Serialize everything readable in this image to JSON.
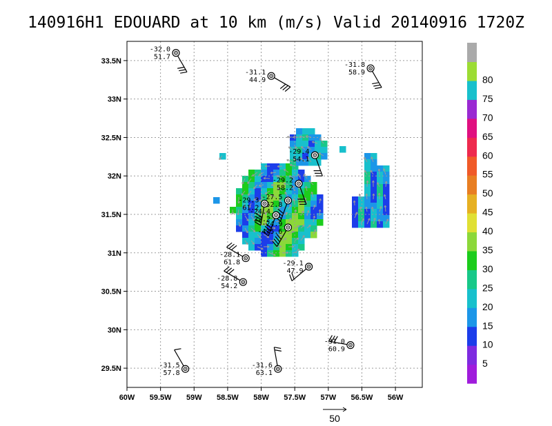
{
  "chart_data": {
    "type": "scatter",
    "title": "140916H1 EDOUARD at 10 km (m/s) Valid 20140916 1720Z",
    "xlim": [
      -60.0,
      -55.6
    ],
    "ylim": [
      29.25,
      33.75
    ],
    "x_ticks": [
      {
        "value": -60.0,
        "label": "60W"
      },
      {
        "value": -59.5,
        "label": "59.5W"
      },
      {
        "value": -59.0,
        "label": "59W"
      },
      {
        "value": -58.5,
        "label": "58.5W"
      },
      {
        "value": -58.0,
        "label": "58W"
      },
      {
        "value": -57.5,
        "label": "57.5W"
      },
      {
        "value": -57.0,
        "label": "57W"
      },
      {
        "value": -56.5,
        "label": "56.5W"
      },
      {
        "value": -56.0,
        "label": "56W"
      }
    ],
    "y_ticks": [
      {
        "value": 29.5,
        "label": "29.5N"
      },
      {
        "value": 30.0,
        "label": "30N"
      },
      {
        "value": 30.5,
        "label": "30.5N"
      },
      {
        "value": 31.0,
        "label": "31N"
      },
      {
        "value": 31.5,
        "label": "31.5N"
      },
      {
        "value": 32.0,
        "label": "32N"
      },
      {
        "value": 32.5,
        "label": "32.5N"
      },
      {
        "value": 33.0,
        "label": "33N"
      },
      {
        "value": 33.5,
        "label": "33.5N"
      }
    ],
    "grid": true,
    "dropsondes": [
      {
        "lon": -59.27,
        "lat": 33.6,
        "top": "-32.0",
        "bottom": "51.7"
      },
      {
        "lon": -57.85,
        "lat": 33.3,
        "top": "-31.1",
        "bottom": "44.9"
      },
      {
        "lon": -56.37,
        "lat": 33.4,
        "top": "-31.8",
        "bottom": "58.9"
      },
      {
        "lon": -57.2,
        "lat": 32.27,
        "top": "-29.4",
        "bottom": "54.1"
      },
      {
        "lon": -57.44,
        "lat": 31.9,
        "top": "-29.2",
        "bottom": "58.2"
      },
      {
        "lon": -57.6,
        "lat": 31.68,
        "top": "-27.5",
        "bottom": "52.8"
      },
      {
        "lon": -57.95,
        "lat": 31.64,
        "top": "-29.3",
        "bottom": "61.2"
      },
      {
        "lon": -57.78,
        "lat": 31.49,
        "top": "-24.4",
        "bottom": "22.2"
      },
      {
        "lon": -57.6,
        "lat": 31.33,
        "top": "-24.9",
        "bottom": "-475.6"
      },
      {
        "lon": -58.23,
        "lat": 30.93,
        "top": "-28.1",
        "bottom": "61.8"
      },
      {
        "lon": -57.29,
        "lat": 30.82,
        "top": "-29.1",
        "bottom": "47.9"
      },
      {
        "lon": -58.27,
        "lat": 30.62,
        "top": "-28.8",
        "bottom": "54.2"
      },
      {
        "lon": -56.67,
        "lat": 29.8,
        "top": "-31.0",
        "bottom": "60.9"
      },
      {
        "lon": -59.13,
        "lat": 29.49,
        "top": "-31.5",
        "bottom": "57.8"
      },
      {
        "lon": -57.75,
        "lat": 29.49,
        "top": "-31.6",
        "bottom": "63.1"
      }
    ],
    "colorbar": {
      "labels": [
        "5",
        "10",
        "15",
        "20",
        "25",
        "30",
        "35",
        "40",
        "45",
        "50",
        "55",
        "60",
        "65",
        "70",
        "75",
        "80"
      ],
      "colors": [
        "#a01cdc",
        "#7e2be0",
        "#1c3dea",
        "#1c96e8",
        "#18c0cc",
        "#18c888",
        "#1ccc1c",
        "#8cd83a",
        "#e0e034",
        "#e6b022",
        "#e87e22",
        "#f05a28",
        "#ee2a4e",
        "#e01080",
        "#9a2ad2",
        "#18c0cc",
        "#9cdc34",
        "#aaaaaa"
      ]
    },
    "reference_vector": {
      "label": "50"
    }
  }
}
